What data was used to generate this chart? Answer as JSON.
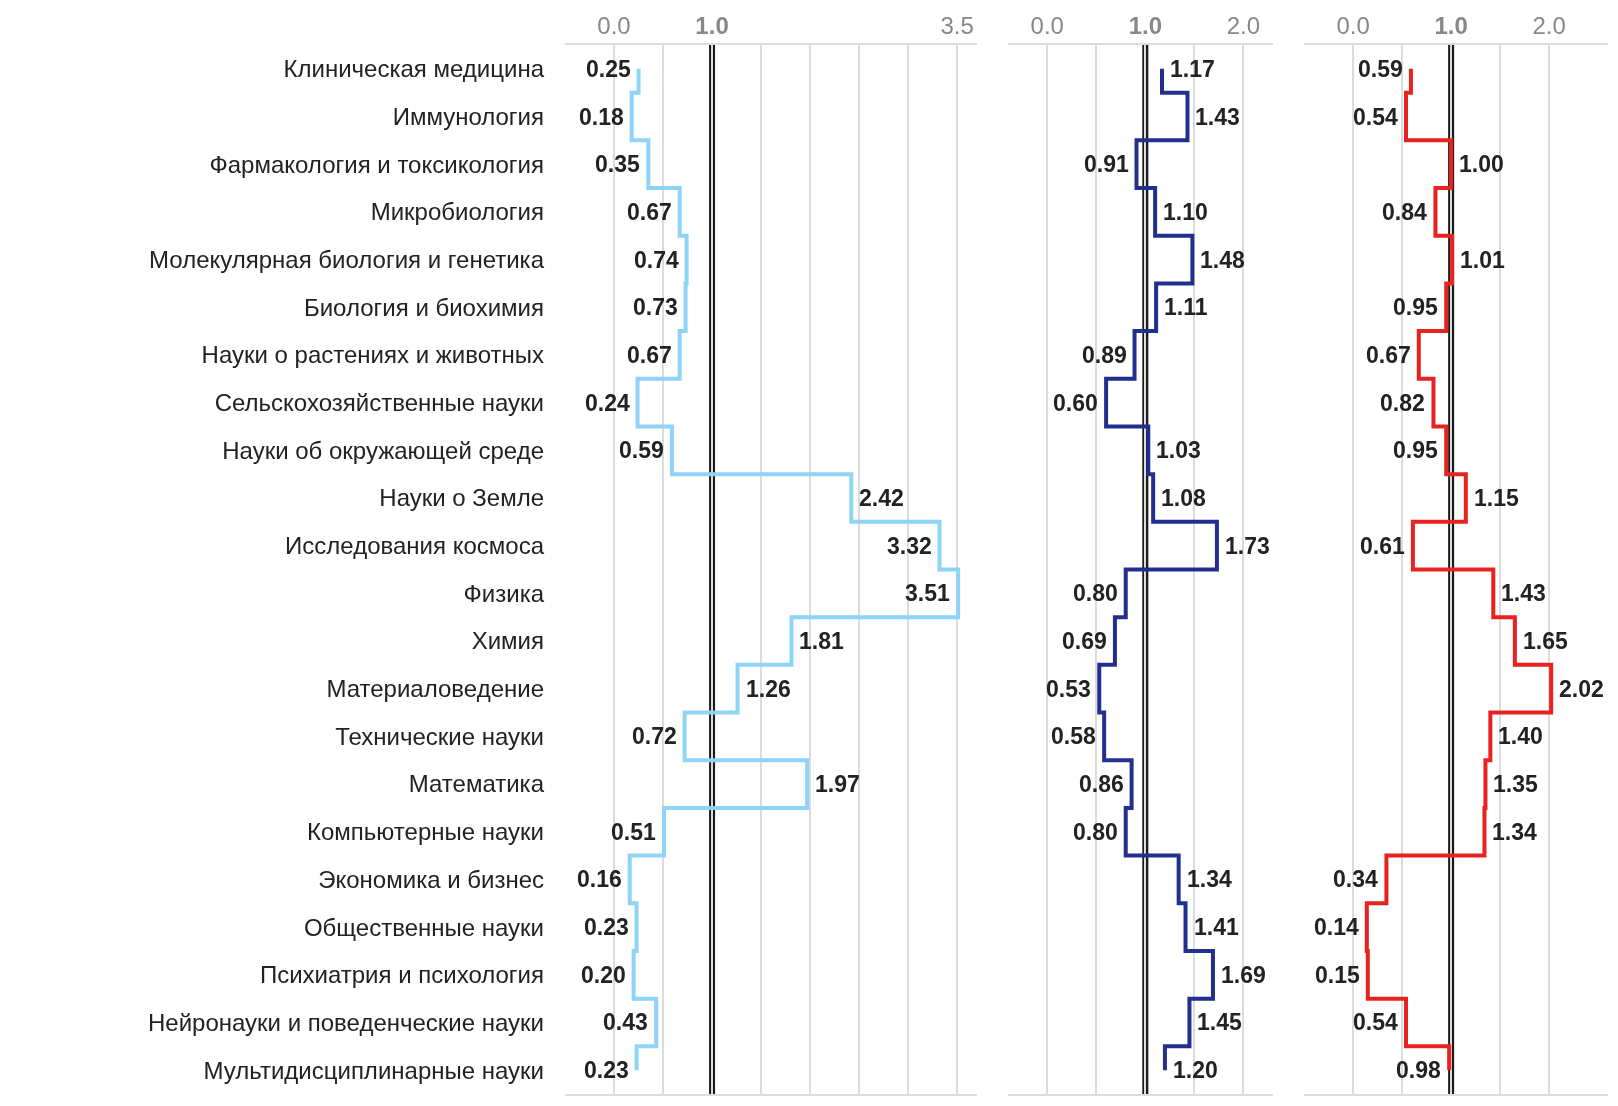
{
  "chart_data": [
    {
      "type": "step",
      "orientation": "horizontal",
      "categories": [
        "Клиническая медицина",
        "Иммунология",
        "Фармакология и токсикология",
        "Микробиология",
        "Молекулярная биология и генетика",
        "Биология и биохимия",
        "Науки о растениях и животных",
        "Сельскохозяйственные науки",
        "Науки об окружающей среде",
        "Науки о Земле",
        "Исследования космоса",
        "Физика",
        "Химия",
        "Материаловедение",
        "Технические науки",
        "Математика",
        "Компьютерные науки",
        "Экономика и бизнес",
        "Общественные науки",
        "Психиатрия и психология",
        "Нейронауки и поведенческие науки",
        "Мультидисциплинарные науки"
      ],
      "series": [
        {
          "color": "#8fd3f6",
          "values": [
            0.25,
            0.18,
            0.35,
            0.67,
            0.74,
            0.73,
            0.67,
            0.24,
            0.59,
            2.42,
            3.32,
            3.51,
            1.81,
            1.26,
            0.72,
            1.97,
            0.51,
            0.16,
            0.23,
            0.2,
            0.43,
            0.23
          ],
          "value_labels": [
            "0.25",
            "0.18",
            "0.35",
            "0.67",
            "0.74",
            "0.73",
            "0.67",
            "0.24",
            "0.59",
            "2.42",
            "3.32",
            "3.51",
            "1.81",
            "1.26",
            "0.72",
            "1.97",
            "0.51",
            "0.16",
            "0.23",
            "0.20",
            "0.43",
            "0.23"
          ]
        }
      ],
      "xlim": [
        -0.5,
        3.7
      ],
      "xticks": [
        {
          "value": 0,
          "label": "0.0"
        },
        {
          "value": 0.5,
          "label": null
        },
        {
          "value": 1,
          "label": "1.0"
        },
        {
          "value": 1.5,
          "label": null
        },
        {
          "value": 2,
          "label": null
        },
        {
          "value": 2.5,
          "label": null
        },
        {
          "value": 3,
          "label": null
        },
        {
          "value": 3.5,
          "label": "3.5"
        }
      ],
      "ref_lines": [
        {
          "axis": "x",
          "value": 1,
          "color": "#1a1a1a"
        }
      ],
      "grid": "x"
    },
    {
      "type": "step",
      "orientation": "horizontal",
      "categories": [
        null,
        null,
        null,
        null,
        null,
        null,
        null,
        null,
        null,
        null,
        null,
        null,
        null,
        null,
        null,
        null,
        null,
        null,
        null,
        null,
        null,
        null
      ],
      "series": [
        {
          "color": "#232f8e",
          "values": [
            1.17,
            1.43,
            0.91,
            1.1,
            1.48,
            1.11,
            0.89,
            0.6,
            1.03,
            1.08,
            1.73,
            0.8,
            0.69,
            0.53,
            0.58,
            0.86,
            0.8,
            1.34,
            1.41,
            1.69,
            1.45,
            1.2
          ],
          "value_labels": [
            "1.17",
            "1.43",
            "0.91",
            "1.10",
            "1.48",
            "1.11",
            "0.89",
            "0.60",
            "1.03",
            "1.08",
            "1.73",
            "0.80",
            "0.69",
            "0.53",
            "0.58",
            "0.86",
            "0.80",
            "1.34",
            "1.41",
            "1.69",
            "1.45",
            "1.20"
          ]
        }
      ],
      "xlim": [
        -0.4,
        2.3
      ],
      "xticks": [
        {
          "value": 0,
          "label": "0.0"
        },
        {
          "value": 0.5,
          "label": null
        },
        {
          "value": 1,
          "label": "1.0"
        },
        {
          "value": 1.5,
          "label": null
        },
        {
          "value": 2,
          "label": "2.0"
        }
      ],
      "ref_lines": [
        {
          "axis": "x",
          "value": 1,
          "color": "#1a1a1a"
        }
      ],
      "grid": "x",
      "tick_labels": "x"
    },
    {
      "type": "step",
      "orientation": "horizontal",
      "categories": [
        null,
        null,
        null,
        null,
        null,
        null,
        null,
        null,
        null,
        null,
        null,
        null,
        null,
        null,
        null,
        null,
        null,
        null,
        null,
        null,
        null,
        null
      ],
      "series": [
        {
          "color": "#e8221e",
          "values": [
            0.59,
            0.54,
            1.0,
            0.84,
            1.01,
            0.95,
            0.67,
            0.82,
            0.95,
            1.15,
            0.61,
            1.43,
            1.65,
            2.02,
            1.4,
            1.35,
            1.34,
            0.34,
            0.14,
            0.15,
            0.54,
            0.98
          ],
          "value_labels": [
            "0.59",
            "0.54",
            "1.00",
            "0.84",
            "1.01",
            "0.95",
            "0.67",
            "0.82",
            "0.95",
            "1.15",
            "0.61",
            "1.43",
            "1.65",
            "2.02",
            "1.40",
            "1.35",
            "1.34",
            "0.34",
            "0.14",
            "0.15",
            "0.54",
            "0.98"
          ]
        }
      ],
      "xlim": [
        -0.5,
        2.6
      ],
      "xticks": [
        {
          "value": 0,
          "label": "0.0"
        },
        {
          "value": 0.5,
          "label": null
        },
        {
          "value": 1,
          "label": "1.0"
        },
        {
          "value": 1.5,
          "label": null
        },
        {
          "value": 2,
          "label": "2.0"
        }
      ],
      "ref_lines": [
        {
          "axis": "x",
          "value": 1,
          "color": "#1a1a1a"
        }
      ],
      "grid": "x",
      "tick_labels": "x"
    }
  ]
}
